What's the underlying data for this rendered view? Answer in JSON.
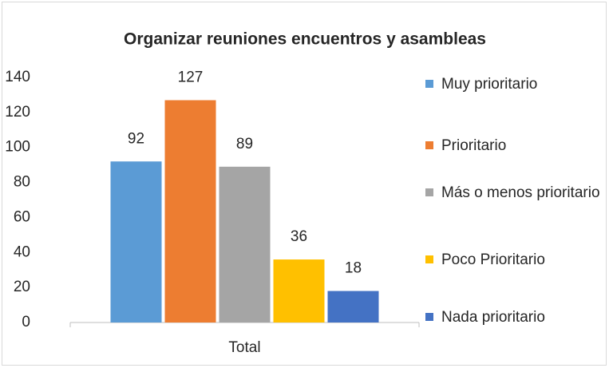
{
  "chart_data": {
    "type": "bar",
    "title": "Organizar reuniones encuentros y asambleas",
    "categories": [
      "Total"
    ],
    "series": [
      {
        "name": "Muy prioritario",
        "color": "#5b9bd5",
        "values": [
          92
        ]
      },
      {
        "name": "Prioritario",
        "color": "#ed7d31",
        "values": [
          127
        ]
      },
      {
        "name": "Más o menos prioritario",
        "color": "#a5a5a5",
        "values": [
          89
        ]
      },
      {
        "name": "Poco Prioritario",
        "color": "#ffc000",
        "values": [
          36
        ]
      },
      {
        "name": "Nada prioritario",
        "color": "#4472c4",
        "values": [
          18
        ]
      }
    ],
    "ylim": [
      0,
      140
    ],
    "yticks": [
      0,
      20,
      40,
      60,
      80,
      100,
      120,
      140
    ],
    "grid": false,
    "legend": "right"
  }
}
